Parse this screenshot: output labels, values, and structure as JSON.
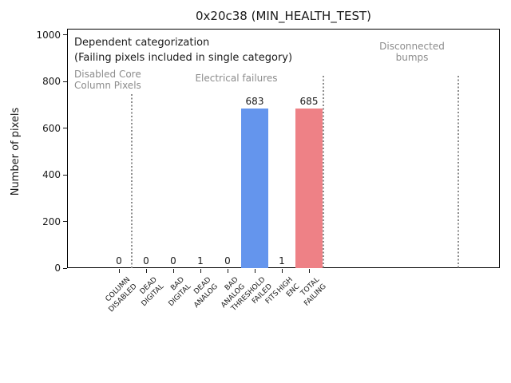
{
  "chart_data": {
    "type": "bar",
    "title": "0x20c38 (MIN_HEALTH_TEST)",
    "ylabel": "Number of pixels",
    "ylim": [
      0,
      1020
    ],
    "yticks": [
      0,
      200,
      400,
      600,
      800,
      1000
    ],
    "categories": [
      [
        "COLUMN",
        "DISABLED"
      ],
      [
        "DEAD",
        "DIGITAL"
      ],
      [
        "BAD",
        "DIGITAL"
      ],
      [
        "DEAD",
        "ANALOG"
      ],
      [
        "BAD",
        "ANALOG"
      ],
      [
        "THRESHOLD",
        "FAILED",
        "FITS"
      ],
      [
        "HIGH",
        "ENC"
      ],
      [
        "TOTAL",
        "FAILING"
      ]
    ],
    "values": [
      0,
      0,
      0,
      1,
      0,
      683,
      1,
      685
    ],
    "bar_colors": [
      "#6495ed",
      "#6495ed",
      "#6495ed",
      "#6495ed",
      "#6495ed",
      "#6495ed",
      "#6495ed",
      "#ee8186"
    ],
    "grid": false,
    "legend": null,
    "annotations": {
      "dependent": "Dependent categorization",
      "failing_note": "(Failing pixels included in single category)",
      "regions": [
        {
          "id": "disabled",
          "lines": [
            "Disabled Core",
            "Column Pixels"
          ]
        },
        {
          "id": "electrical",
          "lines": [
            "Electrical failures"
          ]
        },
        {
          "id": "disconnected",
          "lines": [
            "Disconnected",
            "bumps"
          ]
        }
      ]
    },
    "colors": {
      "bar_blue": "#6495ed",
      "bar_red": "#ee8186",
      "annotation_gray": "#8c8c8c",
      "axis_black": "#1a1a1a"
    }
  }
}
